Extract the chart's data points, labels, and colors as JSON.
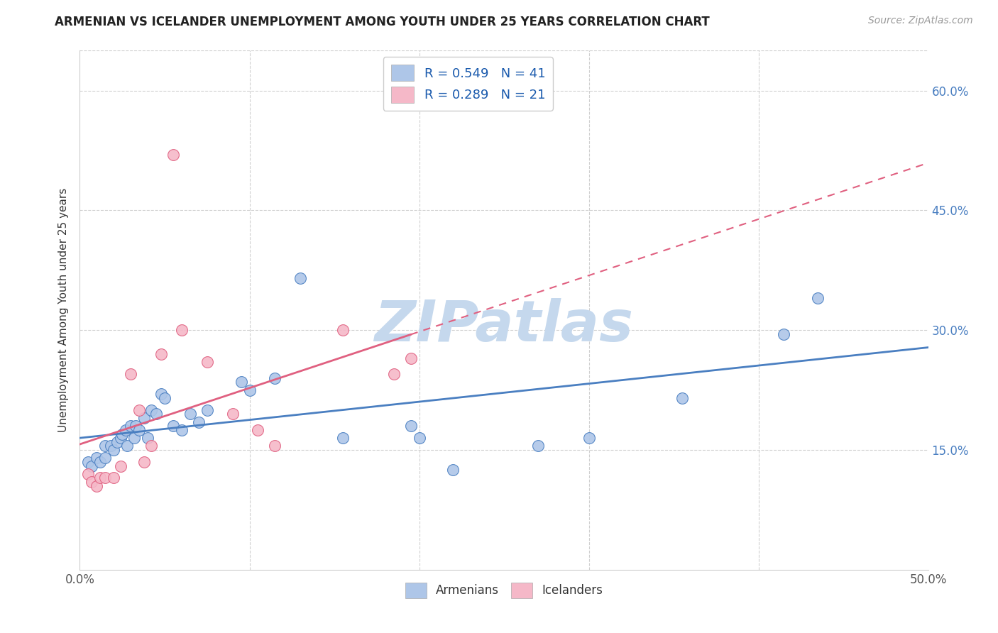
{
  "title": "ARMENIAN VS ICELANDER UNEMPLOYMENT AMONG YOUTH UNDER 25 YEARS CORRELATION CHART",
  "source": "Source: ZipAtlas.com",
  "ylabel": "Unemployment Among Youth under 25 years",
  "xlim": [
    0,
    0.5
  ],
  "ylim": [
    0,
    0.65
  ],
  "ytick_positions": [
    0.15,
    0.3,
    0.45,
    0.6
  ],
  "ytick_labels": [
    "15.0%",
    "30.0%",
    "45.0%",
    "60.0%"
  ],
  "armenian_R": 0.549,
  "armenian_N": 41,
  "icelander_R": 0.289,
  "icelander_N": 21,
  "armenian_color": "#aec6e8",
  "armenian_line_color": "#4a7fc1",
  "armenian_edge_color": "#4a7fc1",
  "icelander_color": "#f5b8c8",
  "icelander_line_color": "#e06080",
  "icelander_edge_color": "#e06080",
  "watermark": "ZIPatlas",
  "watermark_color": "#c5d8ed",
  "armenians_x": [
    0.005,
    0.007,
    0.01,
    0.012,
    0.015,
    0.015,
    0.018,
    0.02,
    0.022,
    0.024,
    0.025,
    0.027,
    0.028,
    0.03,
    0.032,
    0.033,
    0.035,
    0.038,
    0.04,
    0.042,
    0.045,
    0.048,
    0.05,
    0.055,
    0.06,
    0.065,
    0.07,
    0.075,
    0.095,
    0.1,
    0.115,
    0.13,
    0.155,
    0.195,
    0.2,
    0.22,
    0.27,
    0.3,
    0.355,
    0.415,
    0.435
  ],
  "armenians_y": [
    0.135,
    0.13,
    0.14,
    0.135,
    0.155,
    0.14,
    0.155,
    0.15,
    0.16,
    0.165,
    0.17,
    0.175,
    0.155,
    0.18,
    0.165,
    0.18,
    0.175,
    0.19,
    0.165,
    0.2,
    0.195,
    0.22,
    0.215,
    0.18,
    0.175,
    0.195,
    0.185,
    0.2,
    0.235,
    0.225,
    0.24,
    0.365,
    0.165,
    0.18,
    0.165,
    0.125,
    0.155,
    0.165,
    0.215,
    0.295,
    0.34
  ],
  "icelanders_x": [
    0.005,
    0.007,
    0.01,
    0.012,
    0.015,
    0.02,
    0.024,
    0.03,
    0.035,
    0.038,
    0.042,
    0.048,
    0.055,
    0.06,
    0.075,
    0.09,
    0.105,
    0.115,
    0.155,
    0.185,
    0.195
  ],
  "icelanders_y": [
    0.12,
    0.11,
    0.105,
    0.115,
    0.115,
    0.115,
    0.13,
    0.245,
    0.2,
    0.135,
    0.155,
    0.27,
    0.52,
    0.3,
    0.26,
    0.195,
    0.175,
    0.155,
    0.3,
    0.245,
    0.265
  ]
}
